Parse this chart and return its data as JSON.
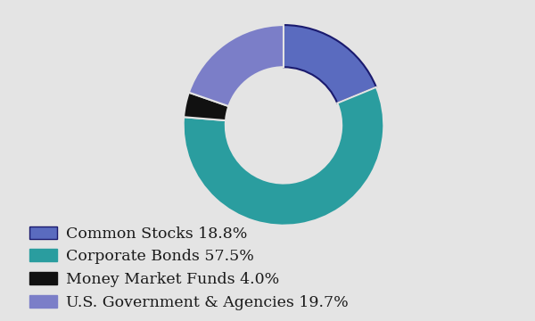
{
  "labels": [
    "Common Stocks 18.8%",
    "Corporate Bonds 57.5%",
    "Money Market Funds 4.0%",
    "U.S. Government & Agencies 19.7%"
  ],
  "values": [
    18.8,
    57.5,
    4.0,
    19.7
  ],
  "colors": [
    "#5a6bbf",
    "#2a9d9f",
    "#111111",
    "#7b7ec8"
  ],
  "hatch_color": "#1a1a6e",
  "bg_color": "#e4e4e4",
  "donut_width": 0.42,
  "legend_fontsize": 12.5,
  "startangle": 90
}
